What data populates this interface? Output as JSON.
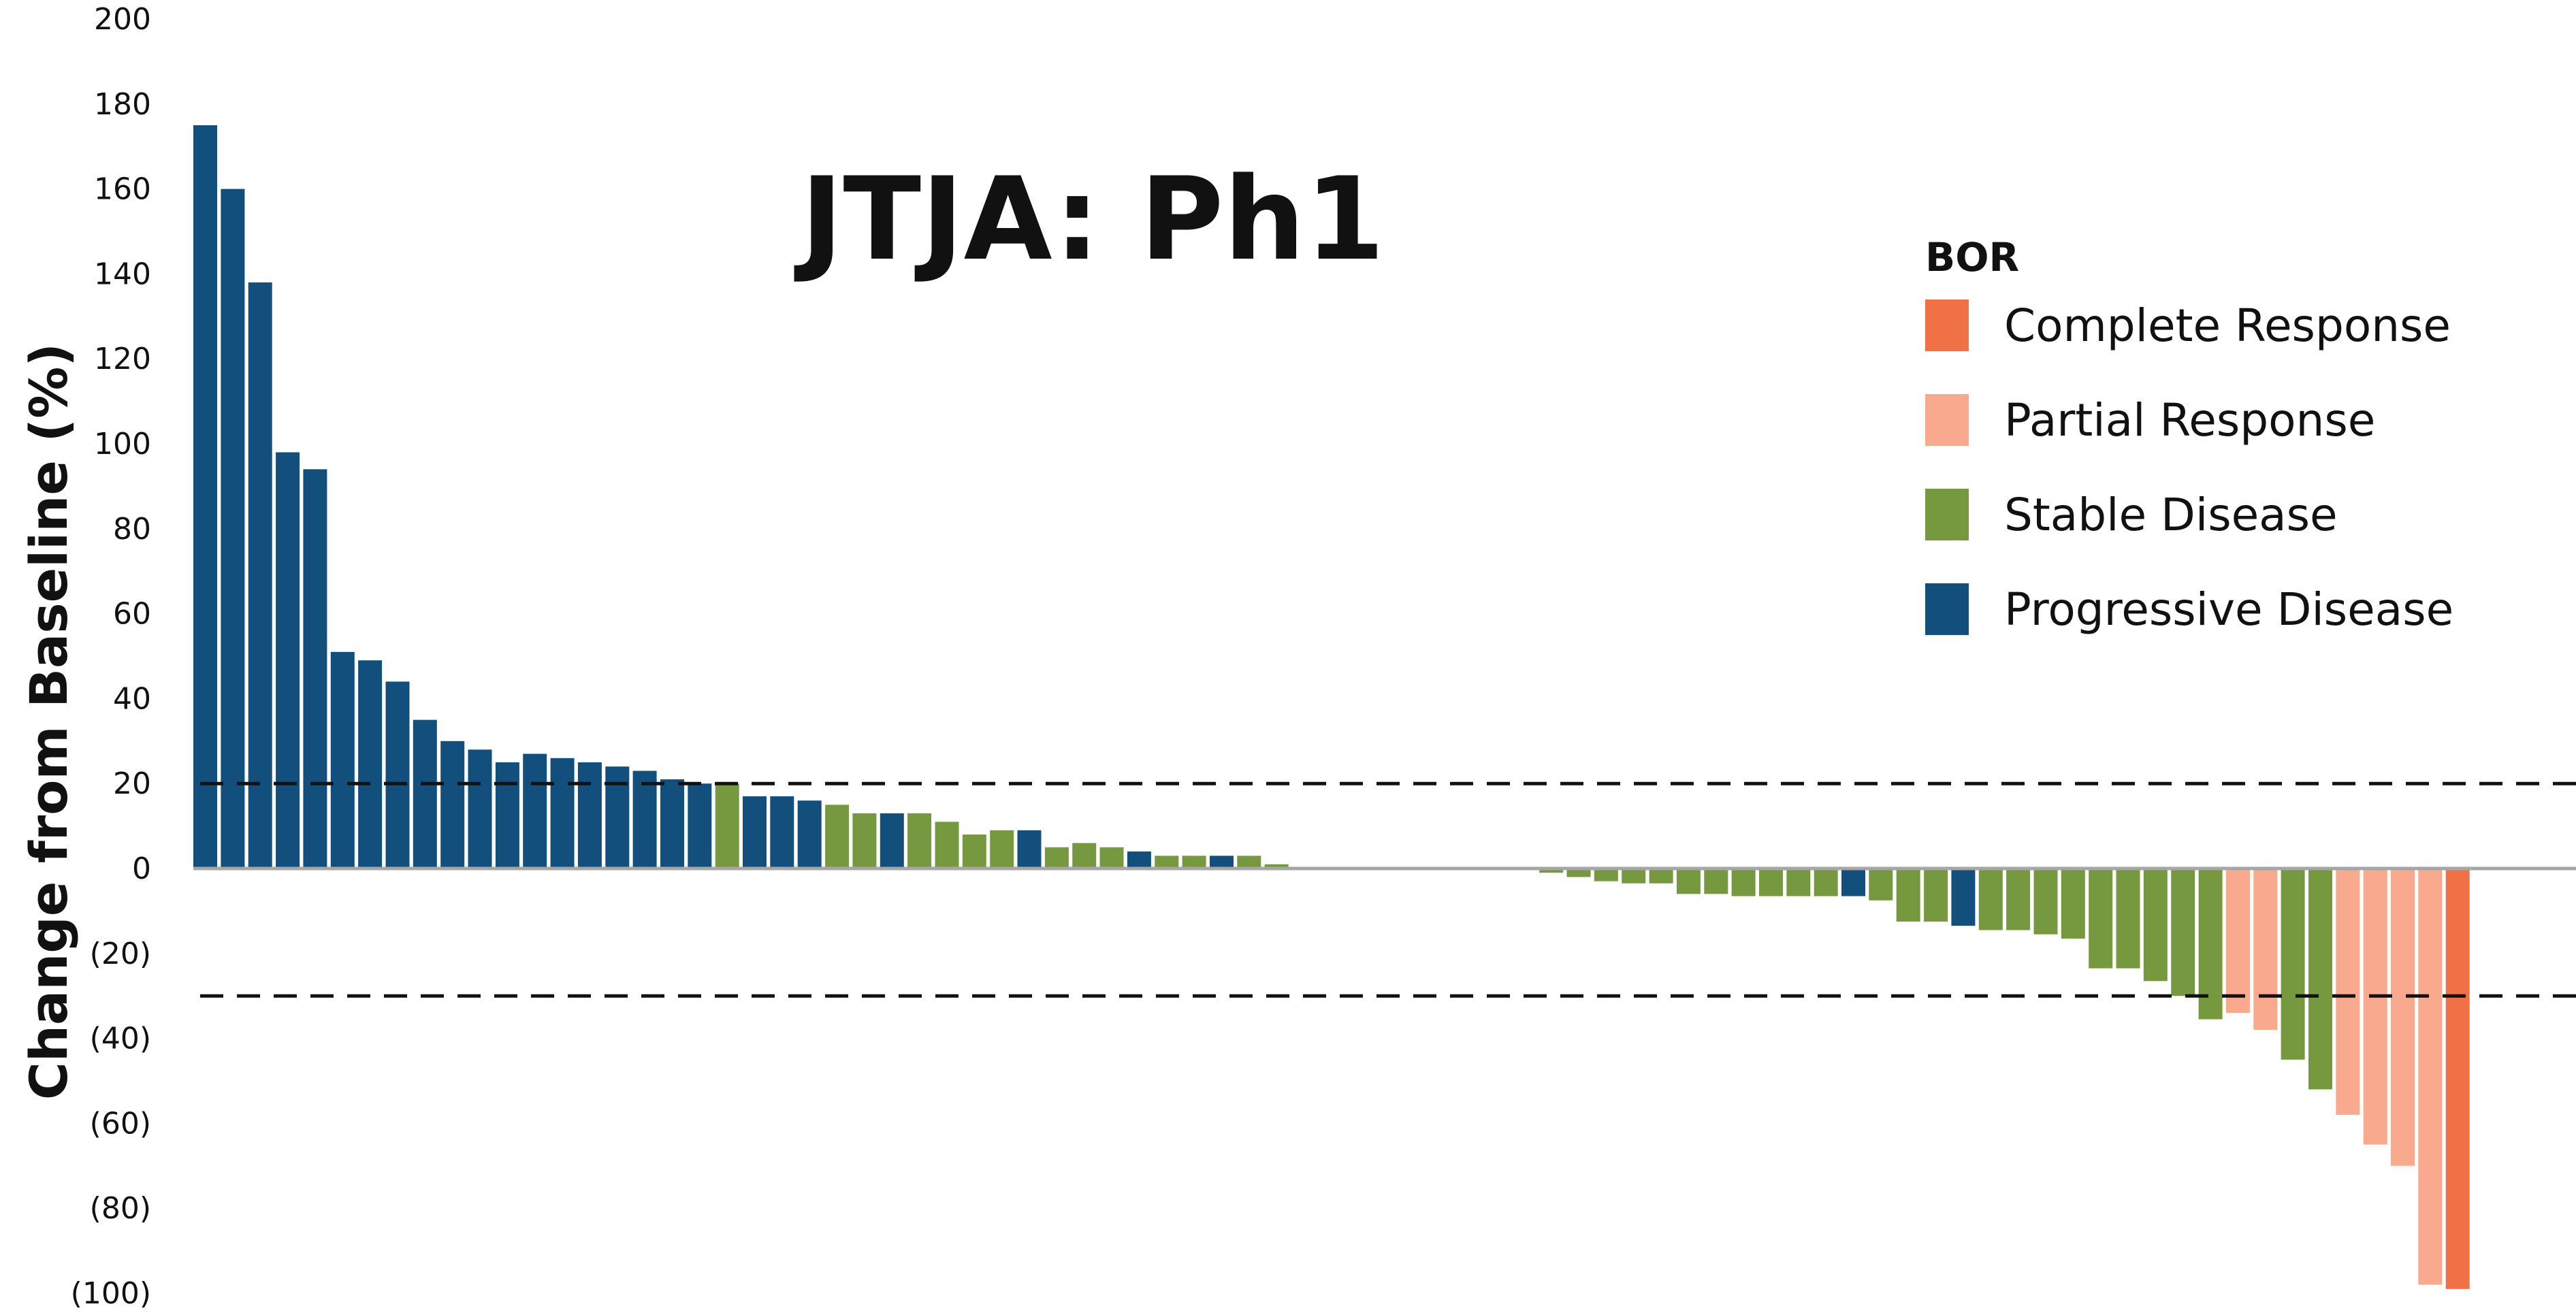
{
  "chart_data": {
    "type": "bar",
    "title": "JTJA: Ph1",
    "ylabel": "Change from Baseline (%)",
    "ylim": [
      -100,
      200
    ],
    "yticks": [
      {
        "value": 200,
        "label": "200"
      },
      {
        "value": 180,
        "label": "180"
      },
      {
        "value": 160,
        "label": "160"
      },
      {
        "value": 140,
        "label": "140"
      },
      {
        "value": 120,
        "label": "120"
      },
      {
        "value": 100,
        "label": "100"
      },
      {
        "value": 80,
        "label": "80"
      },
      {
        "value": 60,
        "label": "60"
      },
      {
        "value": 40,
        "label": "40"
      },
      {
        "value": 20,
        "label": "20"
      },
      {
        "value": 0,
        "label": "0"
      },
      {
        "value": -20,
        "label": "(20)"
      },
      {
        "value": -40,
        "label": "(40)"
      },
      {
        "value": -60,
        "label": "(60)"
      },
      {
        "value": -80,
        "label": "(80)"
      },
      {
        "value": -100,
        "label": "(100)"
      }
    ],
    "reference_lines": [
      20,
      -30
    ],
    "legend": {
      "title": "BOR",
      "position": "top-right",
      "items": [
        {
          "key": "CR",
          "label": "Complete Response",
          "color": "#f07146"
        },
        {
          "key": "PR",
          "label": "Partial Response",
          "color": "#f9aa8e"
        },
        {
          "key": "SD",
          "label": "Stable Disease",
          "color": "#76993f"
        },
        {
          "key": "PD",
          "label": "Progressive Disease",
          "color": "#134f7c"
        }
      ]
    },
    "bars": [
      {
        "value": 175,
        "bor": "PD"
      },
      {
        "value": 160,
        "bor": "PD"
      },
      {
        "value": 138,
        "bor": "PD"
      },
      {
        "value": 98,
        "bor": "PD"
      },
      {
        "value": 94,
        "bor": "PD"
      },
      {
        "value": 51,
        "bor": "PD"
      },
      {
        "value": 49,
        "bor": "PD"
      },
      {
        "value": 44,
        "bor": "PD"
      },
      {
        "value": 35,
        "bor": "PD"
      },
      {
        "value": 30,
        "bor": "PD"
      },
      {
        "value": 28,
        "bor": "PD"
      },
      {
        "value": 25,
        "bor": "PD"
      },
      {
        "value": 27,
        "bor": "PD"
      },
      {
        "value": 26,
        "bor": "PD"
      },
      {
        "value": 25,
        "bor": "PD"
      },
      {
        "value": 24,
        "bor": "PD"
      },
      {
        "value": 23,
        "bor": "PD"
      },
      {
        "value": 21,
        "bor": "PD"
      },
      {
        "value": 20,
        "bor": "PD"
      },
      {
        "value": 20,
        "bor": "SD"
      },
      {
        "value": 17,
        "bor": "PD"
      },
      {
        "value": 17,
        "bor": "PD"
      },
      {
        "value": 16,
        "bor": "PD"
      },
      {
        "value": 15,
        "bor": "SD"
      },
      {
        "value": 13,
        "bor": "SD"
      },
      {
        "value": 13,
        "bor": "PD"
      },
      {
        "value": 13,
        "bor": "SD"
      },
      {
        "value": 11,
        "bor": "SD"
      },
      {
        "value": 8,
        "bor": "SD"
      },
      {
        "value": 9,
        "bor": "SD"
      },
      {
        "value": 9,
        "bor": "PD"
      },
      {
        "value": 5,
        "bor": "SD"
      },
      {
        "value": 6,
        "bor": "SD"
      },
      {
        "value": 5,
        "bor": "SD"
      },
      {
        "value": 4,
        "bor": "PD"
      },
      {
        "value": 3,
        "bor": "SD"
      },
      {
        "value": 3,
        "bor": "SD"
      },
      {
        "value": 3,
        "bor": "PD"
      },
      {
        "value": 3,
        "bor": "SD"
      },
      {
        "value": 1,
        "bor": "SD"
      },
      {
        "value": 0,
        "bor": "SD"
      },
      {
        "value": 0,
        "bor": "SD"
      },
      {
        "value": 0,
        "bor": "SD"
      },
      {
        "value": 0,
        "bor": "SD"
      },
      {
        "value": 0,
        "bor": "SD"
      },
      {
        "value": 0,
        "bor": "SD"
      },
      {
        "value": 0,
        "bor": "SD"
      },
      {
        "value": 0,
        "bor": "SD"
      },
      {
        "value": 0,
        "bor": "SD"
      },
      {
        "value": -1,
        "bor": "SD"
      },
      {
        "value": -2,
        "bor": "SD"
      },
      {
        "value": -3,
        "bor": "SD"
      },
      {
        "value": -3.5,
        "bor": "SD"
      },
      {
        "value": -3.5,
        "bor": "SD"
      },
      {
        "value": -6,
        "bor": "SD"
      },
      {
        "value": -6,
        "bor": "SD"
      },
      {
        "value": -6.5,
        "bor": "SD"
      },
      {
        "value": -6.5,
        "bor": "SD"
      },
      {
        "value": -6.5,
        "bor": "SD"
      },
      {
        "value": -6.5,
        "bor": "SD"
      },
      {
        "value": -6.5,
        "bor": "PD"
      },
      {
        "value": -7.5,
        "bor": "SD"
      },
      {
        "value": -12.5,
        "bor": "SD"
      },
      {
        "value": -12.5,
        "bor": "SD"
      },
      {
        "value": -13.5,
        "bor": "PD"
      },
      {
        "value": -14.5,
        "bor": "SD"
      },
      {
        "value": -14.5,
        "bor": "SD"
      },
      {
        "value": -15.5,
        "bor": "SD"
      },
      {
        "value": -16.5,
        "bor": "SD"
      },
      {
        "value": -23.5,
        "bor": "SD"
      },
      {
        "value": -23.5,
        "bor": "SD"
      },
      {
        "value": -26.5,
        "bor": "SD"
      },
      {
        "value": -30,
        "bor": "SD"
      },
      {
        "value": -35.5,
        "bor": "SD"
      },
      {
        "value": -34,
        "bor": "PR"
      },
      {
        "value": -38,
        "bor": "PR"
      },
      {
        "value": -45,
        "bor": "SD"
      },
      {
        "value": -52,
        "bor": "SD"
      },
      {
        "value": -58,
        "bor": "PR"
      },
      {
        "value": -65,
        "bor": "PR"
      },
      {
        "value": -70,
        "bor": "PR"
      },
      {
        "value": -98,
        "bor": "PR"
      },
      {
        "value": -99,
        "bor": "CR"
      }
    ]
  }
}
